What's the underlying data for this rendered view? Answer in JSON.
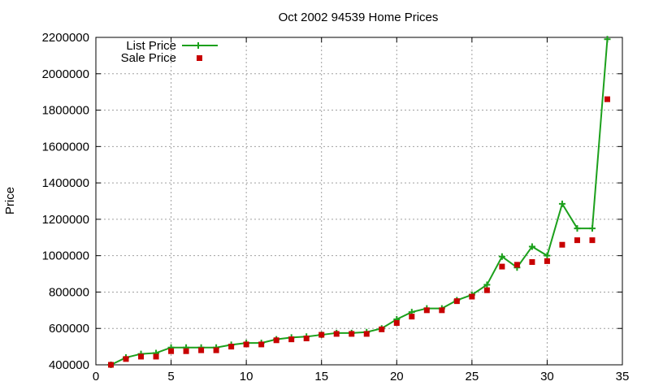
{
  "chart_data": {
    "type": "line",
    "title": "Oct 2002 94539 Home Prices",
    "xlabel": "",
    "ylabel": "Price",
    "xlim": [
      0,
      35
    ],
    "ylim": [
      400000,
      2200000
    ],
    "xticks": [
      0,
      5,
      10,
      15,
      20,
      25,
      30,
      35
    ],
    "yticks": [
      400000,
      600000,
      800000,
      1000000,
      1200000,
      1400000,
      1600000,
      1800000,
      2000000,
      2200000
    ],
    "grid": true,
    "legend_position": "top-left",
    "series": [
      {
        "name": "List Price",
        "style": "line-with-plus-markers",
        "color": "#1ca01c",
        "x": [
          1,
          2,
          3,
          4,
          5,
          6,
          7,
          8,
          9,
          10,
          11,
          12,
          13,
          14,
          15,
          16,
          17,
          18,
          19,
          20,
          21,
          22,
          23,
          24,
          25,
          26,
          27,
          28,
          29,
          30,
          31,
          32,
          33,
          34
        ],
        "values": [
          400000,
          440000,
          460000,
          465000,
          495000,
          495000,
          495000,
          495000,
          510000,
          520000,
          520000,
          540000,
          550000,
          555000,
          565000,
          575000,
          575000,
          580000,
          600000,
          650000,
          690000,
          710000,
          710000,
          755000,
          785000,
          840000,
          995000,
          935000,
          1050000,
          1000000,
          1285000,
          1150000,
          1150000,
          2190000
        ]
      },
      {
        "name": "Sale Price",
        "style": "square-markers",
        "color": "#c80000",
        "x": [
          1,
          2,
          3,
          4,
          5,
          6,
          7,
          8,
          9,
          10,
          11,
          12,
          13,
          14,
          15,
          16,
          17,
          18,
          19,
          20,
          21,
          22,
          23,
          24,
          25,
          26,
          27,
          28,
          29,
          30,
          31,
          32,
          33,
          34
        ],
        "values": [
          400000,
          432000,
          445000,
          445000,
          475000,
          475000,
          480000,
          480000,
          500000,
          512000,
          512000,
          535000,
          540000,
          545000,
          565000,
          570000,
          570000,
          570000,
          595000,
          630000,
          665000,
          700000,
          700000,
          750000,
          775000,
          810000,
          940000,
          950000,
          965000,
          970000,
          1060000,
          1085000,
          1085000,
          1860000
        ]
      }
    ]
  }
}
